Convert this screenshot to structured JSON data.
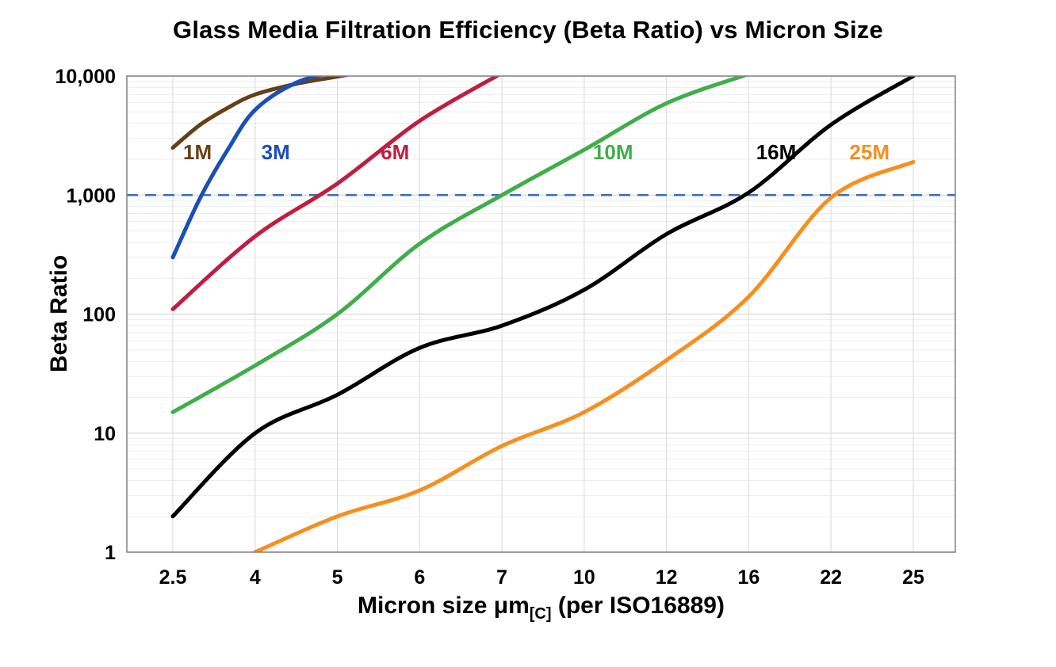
{
  "title": "Glass Media Filtration Efficiency (Beta Ratio) vs Micron Size",
  "chart_data": {
    "type": "line",
    "title": "Glass Media Filtration Efficiency (Beta Ratio) vs Micron Size",
    "xlabel": "Micron size μm",
    "xlabel_subscript": "[C]",
    "xlabel_suffix": " (per ISO16889)",
    "ylabel": "Beta Ratio",
    "y_scale": "log",
    "ylim": [
      1,
      10000
    ],
    "y_ticks": [
      1,
      10,
      100,
      1000,
      10000
    ],
    "y_tick_labels": [
      "1",
      "10",
      "100",
      "1,000",
      "10,000"
    ],
    "x_ticks": [
      2.5,
      4,
      5,
      6,
      7,
      10,
      12,
      16,
      22,
      25
    ],
    "x_tick_labels": [
      "2.5",
      "4",
      "5",
      "6",
      "7",
      "10",
      "12",
      "16",
      "22",
      "25"
    ],
    "grid": true,
    "legend_position": "inline-curve-labels",
    "reference_line": {
      "value": 1000,
      "style": "dashed",
      "color": "#3a6fb5"
    },
    "series": [
      {
        "name": "1M",
        "color": "#654016",
        "label_pos": [
          2.95,
          2300
        ],
        "points": [
          [
            2.5,
            2500
          ],
          [
            3,
            3900
          ],
          [
            3.5,
            5400
          ],
          [
            4,
            7000
          ],
          [
            4.5,
            8600
          ],
          [
            5,
            9900
          ],
          [
            5.3,
            10800
          ]
        ]
      },
      {
        "name": "3M",
        "color": "#1a4fba",
        "label_pos": [
          4.25,
          2300
        ],
        "points": [
          [
            2.5,
            300
          ],
          [
            3,
            950
          ],
          [
            3.5,
            2400
          ],
          [
            4,
            5200
          ],
          [
            4.5,
            8800
          ],
          [
            5,
            10900
          ]
        ]
      },
      {
        "name": "6M",
        "color": "#c01d3f",
        "label_pos": [
          5.7,
          2300
        ],
        "points": [
          [
            2.5,
            110
          ],
          [
            4,
            450
          ],
          [
            5,
            1250
          ],
          [
            6,
            4200
          ],
          [
            7,
            10600
          ]
        ]
      },
      {
        "name": "10M",
        "color": "#3fae49",
        "label_pos": [
          10.7,
          2300
        ],
        "points": [
          [
            2.5,
            15
          ],
          [
            4,
            37
          ],
          [
            5,
            100
          ],
          [
            6,
            390
          ],
          [
            7,
            1000
          ],
          [
            10,
            2400
          ],
          [
            12,
            5900
          ],
          [
            16,
            10400
          ]
        ]
      },
      {
        "name": "16M",
        "color": "#000000",
        "label_pos": [
          18,
          2300
        ],
        "points": [
          [
            2.5,
            2
          ],
          [
            4,
            10
          ],
          [
            5,
            21
          ],
          [
            6,
            52
          ],
          [
            7,
            80
          ],
          [
            10,
            160
          ],
          [
            12,
            470
          ],
          [
            16,
            1050
          ],
          [
            22,
            3900
          ],
          [
            25,
            10000
          ]
        ]
      },
      {
        "name": "25M",
        "color": "#f78f1e",
        "label_pos": [
          23.4,
          2300
        ],
        "points": [
          [
            4,
            1
          ],
          [
            5,
            2
          ],
          [
            6,
            3.3
          ],
          [
            7,
            7.8
          ],
          [
            10,
            15
          ],
          [
            12,
            41
          ],
          [
            16,
            140
          ],
          [
            22,
            950
          ],
          [
            25,
            1900
          ]
        ]
      }
    ]
  }
}
